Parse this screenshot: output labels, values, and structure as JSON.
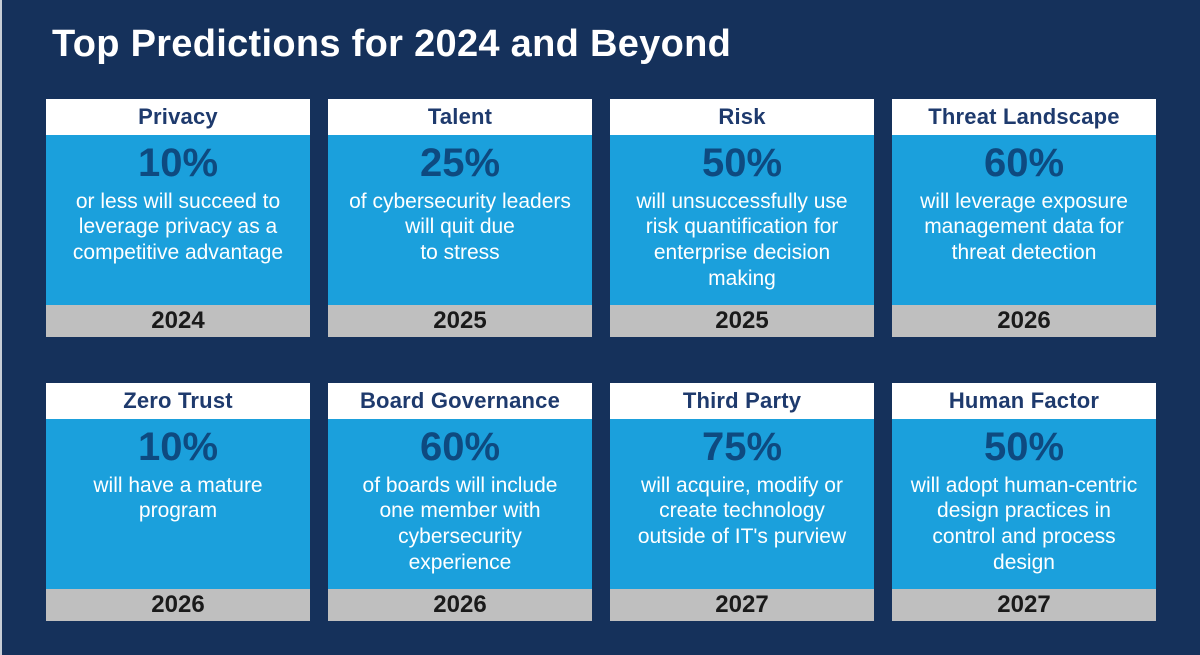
{
  "page": {
    "title": "Top Predictions for 2024 and Beyond",
    "colors": {
      "background_navy": "#15315B",
      "card_body_blue": "#1BA0DC",
      "card_header_white": "#FFFFFF",
      "card_footer_gray": "#BFBFBF",
      "category_text_navy": "#1E3A6D",
      "percent_text_navy": "#0E4A80",
      "description_text_white": "#FFFFFF",
      "year_text_black": "#1A1A1A"
    }
  },
  "cards": [
    {
      "category": "Privacy",
      "percent": "10%",
      "description_lines": [
        "or less will succeed to",
        "leverage privacy as a",
        "competitive advantage"
      ],
      "year": "2024"
    },
    {
      "category": "Talent",
      "percent": "25%",
      "description_lines": [
        "of cybersecurity leaders",
        "will quit due",
        "to stress"
      ],
      "year": "2025"
    },
    {
      "category": "Risk",
      "percent": "50%",
      "description_lines": [
        "will unsuccessfully use",
        "risk quantification for",
        "enterprise decision",
        "making"
      ],
      "year": "2025"
    },
    {
      "category": "Threat Landscape",
      "percent": "60%",
      "description_lines": [
        "will leverage exposure",
        "management data for",
        "threat detection"
      ],
      "year": "2026"
    },
    {
      "category": "Zero Trust",
      "percent": "10%",
      "description_lines": [
        "will have a mature",
        "program"
      ],
      "year": "2026"
    },
    {
      "category": "Board Governance",
      "percent": "60%",
      "description_lines": [
        "of boards will include",
        "one member with",
        "cybersecurity",
        "experience"
      ],
      "year": "2026"
    },
    {
      "category": "Third Party",
      "percent": "75%",
      "description_lines": [
        "will acquire, modify or",
        "create technology",
        "outside of IT's purview"
      ],
      "year": "2027"
    },
    {
      "category": "Human Factor",
      "percent": "50%",
      "description_lines": [
        "will adopt human-centric",
        "design practices in",
        "control and process",
        "design"
      ],
      "year": "2027"
    }
  ]
}
